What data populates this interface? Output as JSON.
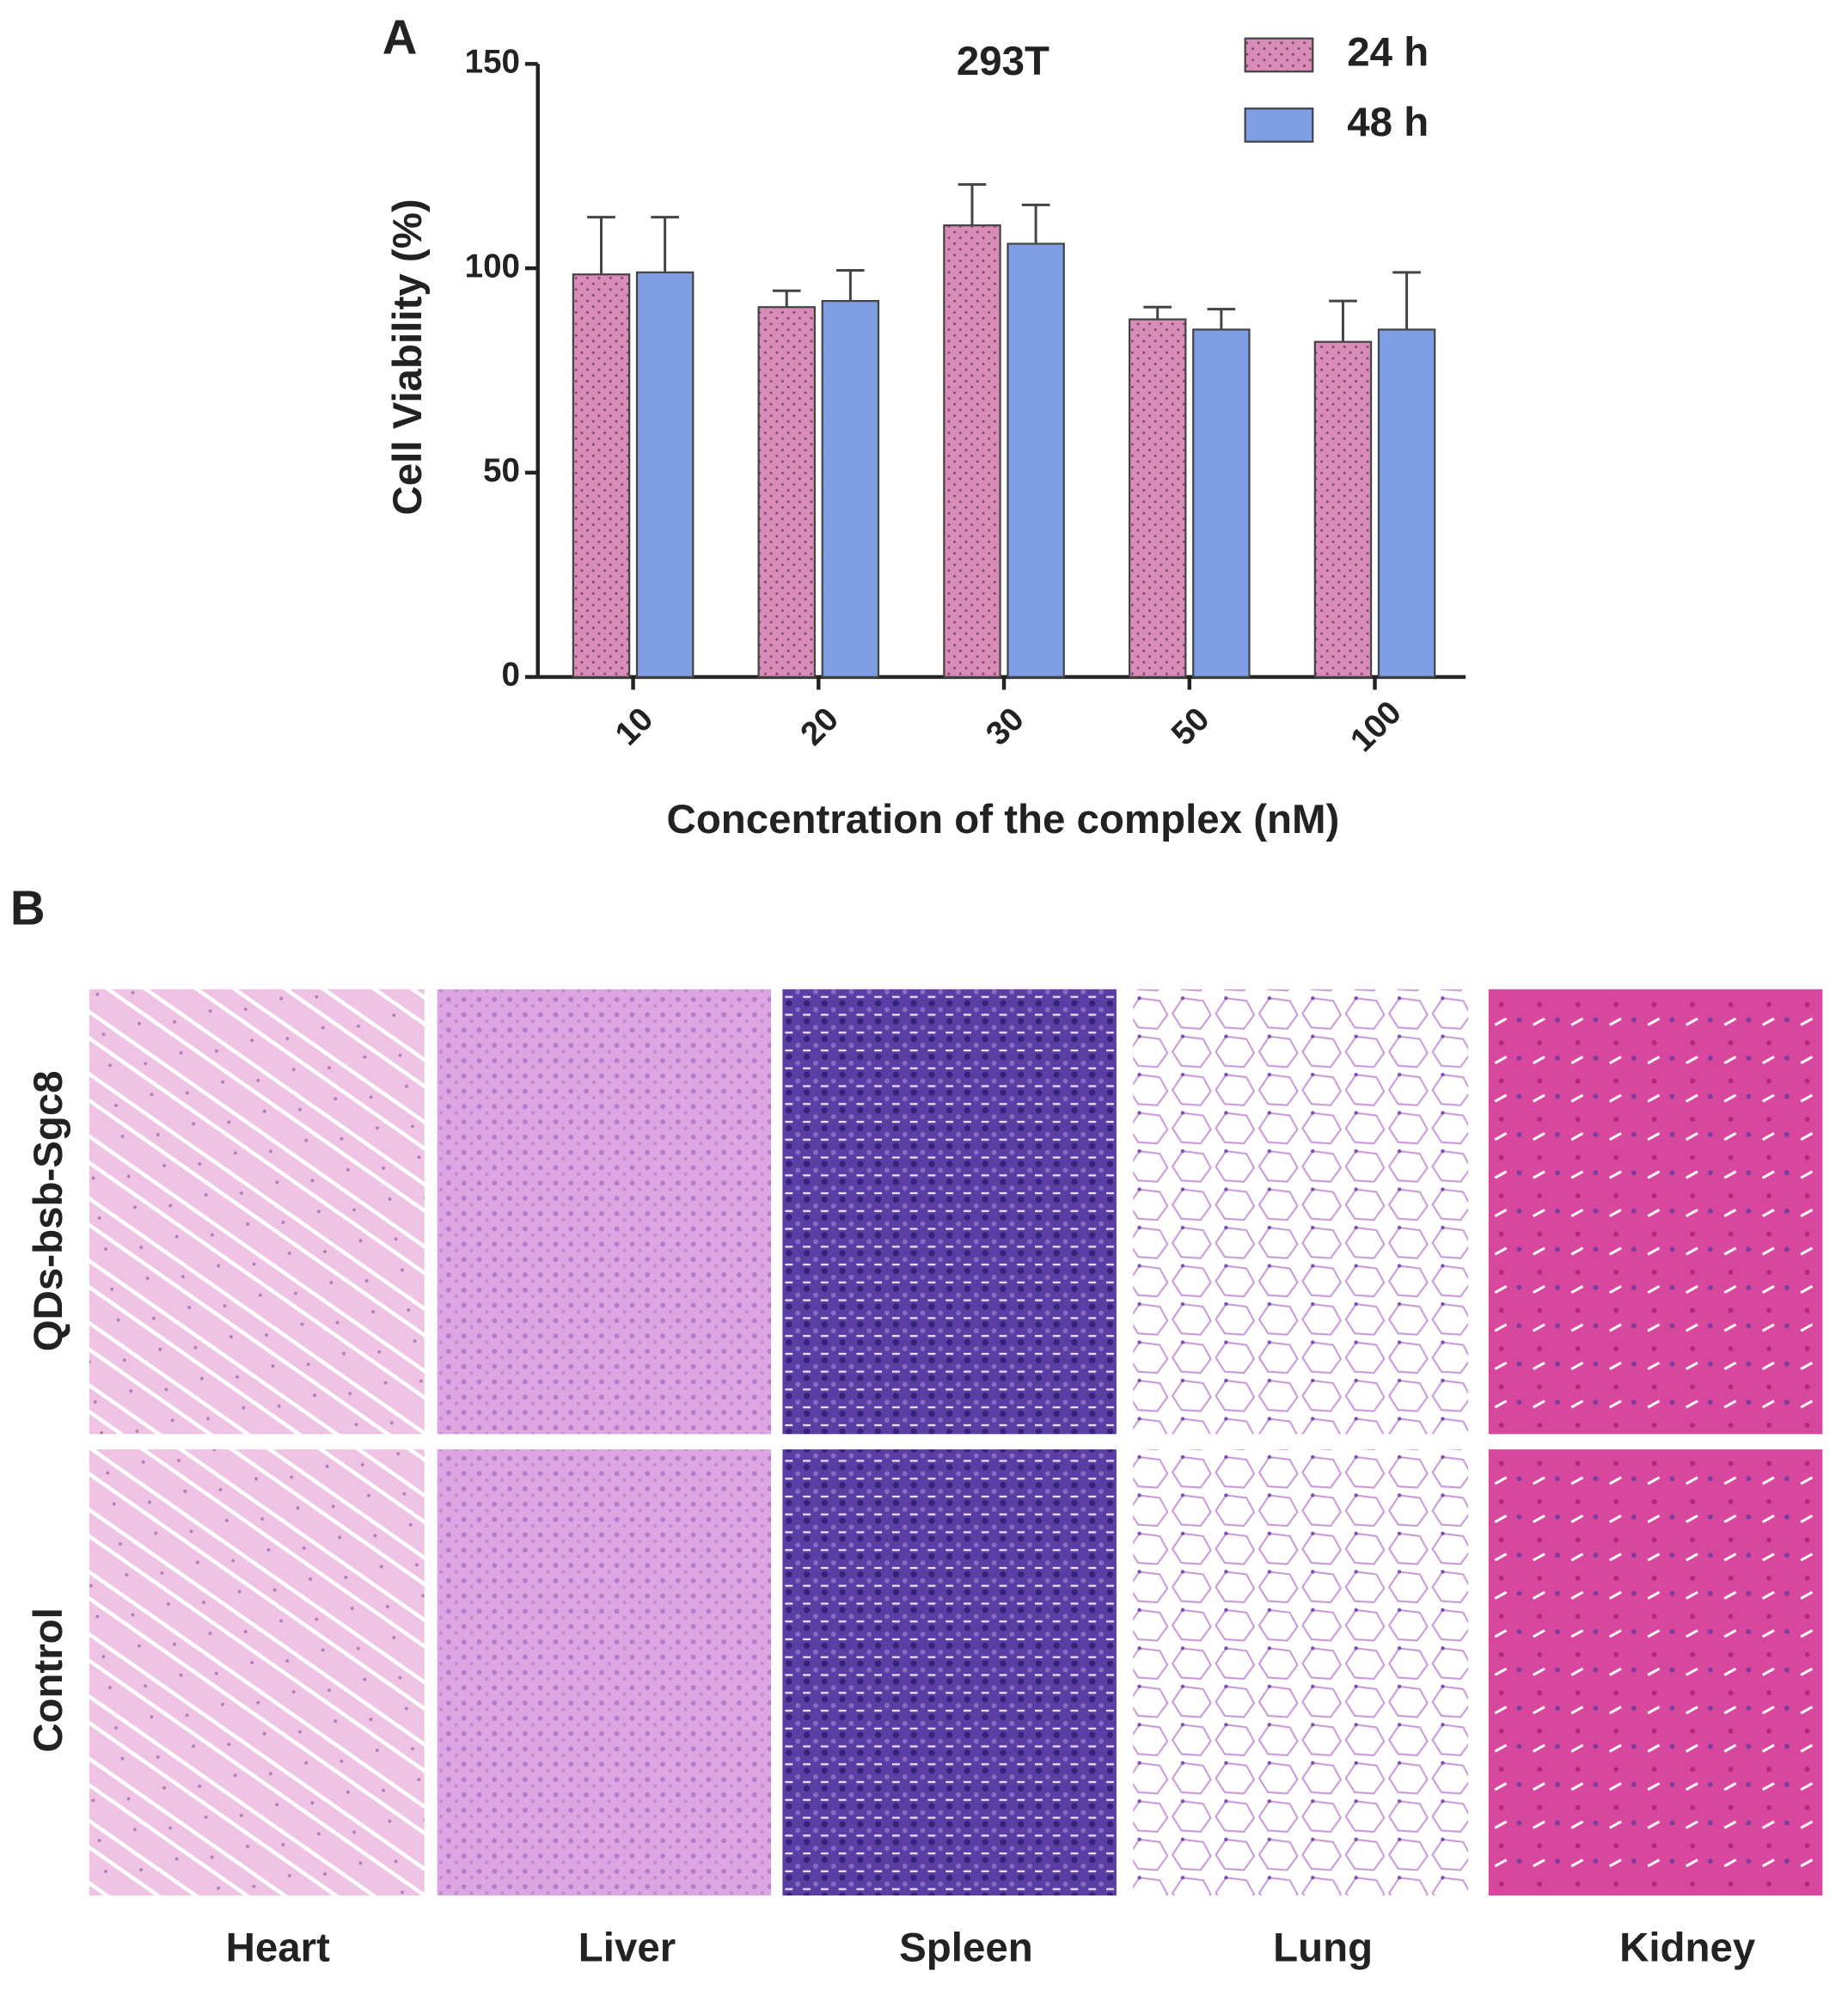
{
  "chart_data": {
    "type": "bar",
    "title": "293T",
    "ylabel": "Cell Viability (%)",
    "xlabel": "Concentration of the complex (nM)",
    "categories": [
      "10",
      "20",
      "30",
      "50",
      "100"
    ],
    "series": [
      {
        "name": "24 h",
        "color": "#d98cb8",
        "pattern": "dots",
        "values": [
          98.5,
          90.5,
          110.5,
          87.5,
          82
        ],
        "errors": [
          14,
          4,
          10,
          3,
          10
        ]
      },
      {
        "name": "48 h",
        "color": "#809ee3",
        "values": [
          99,
          92,
          106,
          85,
          85
        ],
        "errors": [
          13.5,
          7.5,
          9.5,
          5,
          14
        ]
      }
    ],
    "ylim": [
      0,
      150
    ],
    "yticks": [
      0,
      50,
      100,
      150
    ],
    "legend": "upper right"
  },
  "panel_labels": [
    "A",
    "B"
  ],
  "histology": {
    "row_labels": [
      "QDs-bsb-Sgc8",
      "Control"
    ],
    "column_labels": [
      "Heart",
      "Liver",
      "Spleen",
      "Lung",
      "Kidney"
    ]
  }
}
